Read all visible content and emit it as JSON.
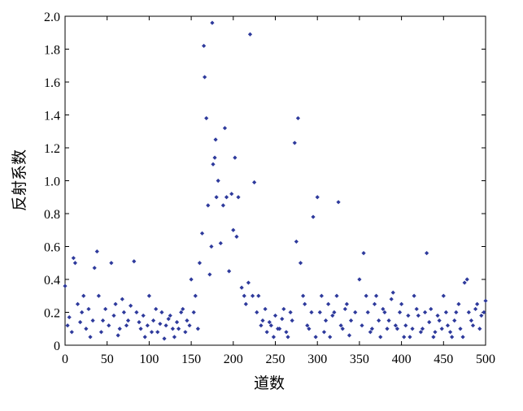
{
  "chart_data": {
    "type": "scatter",
    "xlabel": "道数",
    "ylabel": "反射系数",
    "color": "#2e3a9c",
    "xlim": [
      0,
      500
    ],
    "ylim": [
      0,
      2.0
    ],
    "xticks": [
      0,
      50,
      100,
      150,
      200,
      250,
      300,
      350,
      400,
      450,
      500
    ],
    "yticks": [
      0,
      0.2,
      0.4,
      0.6,
      0.8,
      {
        "value": 1.0,
        "label": "1.0"
      },
      1.2,
      1.4,
      1.6,
      1.8,
      {
        "value": 2.0,
        "label": "2.0"
      }
    ],
    "series": [
      {
        "name": "反射系数",
        "x": [
          0,
          3,
          5,
          8,
          10,
          12,
          15,
          18,
          20,
          22,
          25,
          28,
          30,
          33,
          35,
          38,
          40,
          43,
          45,
          48,
          52,
          55,
          58,
          60,
          63,
          65,
          68,
          70,
          73,
          75,
          78,
          82,
          85,
          88,
          90,
          93,
          95,
          98,
          100,
          103,
          105,
          108,
          110,
          113,
          115,
          118,
          120,
          123,
          125,
          128,
          130,
          133,
          135,
          138,
          140,
          143,
          145,
          148,
          150,
          153,
          155,
          158,
          160,
          163,
          165,
          166,
          168,
          170,
          172,
          174,
          175,
          176,
          178,
          179,
          180,
          182,
          185,
          188,
          190,
          192,
          195,
          198,
          200,
          202,
          204,
          206,
          210,
          213,
          215,
          218,
          220,
          223,
          225,
          228,
          230,
          233,
          235,
          238,
          240,
          243,
          245,
          248,
          250,
          253,
          255,
          258,
          260,
          263,
          265,
          268,
          270,
          273,
          275,
          277,
          280,
          283,
          285,
          288,
          290,
          293,
          295,
          298,
          300,
          303,
          305,
          308,
          310,
          313,
          315,
          318,
          320,
          323,
          325,
          328,
          330,
          333,
          335,
          338,
          340,
          345,
          350,
          353,
          355,
          358,
          360,
          363,
          365,
          368,
          370,
          373,
          375,
          378,
          380,
          383,
          385,
          388,
          390,
          393,
          395,
          398,
          400,
          403,
          405,
          408,
          410,
          413,
          415,
          418,
          420,
          423,
          425,
          428,
          430,
          433,
          435,
          438,
          440,
          443,
          445,
          448,
          450,
          453,
          455,
          458,
          460,
          463,
          465,
          468,
          470,
          473,
          475,
          478,
          480,
          483,
          485,
          488,
          490,
          493,
          495,
          498,
          500
        ],
        "values": [
          0.36,
          0.12,
          0.17,
          0.08,
          0.53,
          0.5,
          0.25,
          0.14,
          0.2,
          0.3,
          0.1,
          0.22,
          0.05,
          0.15,
          0.47,
          0.57,
          0.3,
          0.08,
          0.15,
          0.22,
          0.12,
          0.5,
          0.18,
          0.25,
          0.06,
          0.1,
          0.28,
          0.2,
          0.12,
          0.15,
          0.24,
          0.51,
          0.2,
          0.14,
          0.1,
          0.18,
          0.05,
          0.12,
          0.3,
          0.08,
          0.15,
          0.22,
          0.08,
          0.13,
          0.2,
          0.04,
          0.12,
          0.16,
          0.18,
          0.1,
          0.05,
          0.14,
          0.1,
          0.2,
          0.22,
          0.08,
          0.15,
          0.12,
          0.4,
          0.2,
          0.3,
          0.1,
          0.5,
          0.68,
          1.82,
          1.63,
          1.38,
          0.85,
          0.43,
          0.6,
          1.96,
          1.1,
          1.14,
          1.25,
          0.9,
          1.0,
          0.62,
          0.85,
          1.32,
          0.9,
          0.45,
          0.92,
          0.7,
          1.14,
          0.66,
          0.9,
          0.35,
          0.3,
          0.25,
          0.38,
          1.89,
          0.3,
          0.99,
          0.2,
          0.3,
          0.12,
          0.15,
          0.22,
          0.08,
          0.14,
          0.12,
          0.05,
          0.18,
          0.1,
          0.1,
          0.16,
          0.22,
          0.08,
          0.05,
          0.2,
          0.15,
          1.23,
          0.63,
          1.38,
          0.5,
          0.3,
          0.25,
          0.12,
          0.1,
          0.2,
          0.78,
          0.05,
          0.9,
          0.2,
          0.3,
          0.08,
          0.15,
          0.25,
          0.05,
          0.18,
          0.2,
          0.3,
          0.87,
          0.12,
          0.1,
          0.22,
          0.25,
          0.06,
          0.15,
          0.2,
          0.4,
          0.12,
          0.56,
          0.3,
          0.2,
          0.08,
          0.1,
          0.25,
          0.3,
          0.15,
          0.05,
          0.22,
          0.2,
          0.1,
          0.15,
          0.28,
          0.32,
          0.12,
          0.1,
          0.2,
          0.25,
          0.05,
          0.12,
          0.18,
          0.05,
          0.1,
          0.3,
          0.22,
          0.18,
          0.08,
          0.1,
          0.2,
          0.56,
          0.14,
          0.22,
          0.05,
          0.08,
          0.18,
          0.15,
          0.1,
          0.3,
          0.2,
          0.12,
          0.08,
          0.05,
          0.15,
          0.2,
          0.25,
          0.1,
          0.05,
          0.38,
          0.4,
          0.2,
          0.15,
          0.12,
          0.22,
          0.25,
          0.1,
          0.18,
          0.2,
          0.27
        ]
      }
    ]
  }
}
